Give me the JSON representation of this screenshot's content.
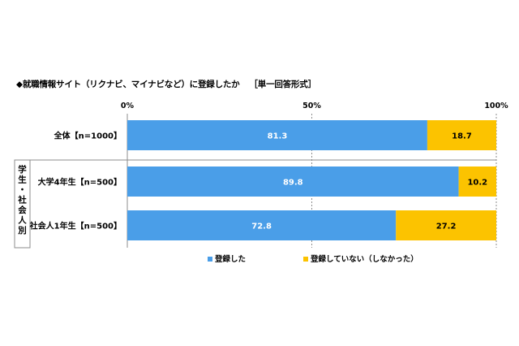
{
  "title": "◆就職情報サイト（リクナビ、マイナビなど）に登録したか",
  "subtitle": "［単一回答形式］",
  "group_label": [
    "学",
    "生",
    "・",
    "社",
    "会",
    "人",
    "別"
  ],
  "colors": {
    "registered": "#4a9ee8",
    "not_registered": "#fcc300",
    "grid": "#8c8c8c"
  },
  "chart_data": {
    "type": "bar",
    "orientation": "horizontal",
    "stacked": true,
    "percent": true,
    "categories": [
      "全体【n=1000】",
      "大学4年生【n=500】",
      "社会人1年生【n=500】"
    ],
    "series": [
      {
        "name": "登録した",
        "values": [
          81.3,
          89.8,
          72.8
        ]
      },
      {
        "name": "登録していない（しなかった）",
        "values": [
          18.7,
          10.2,
          27.2
        ]
      }
    ],
    "ticks": [
      "0%",
      "50%",
      "100%"
    ],
    "xlim": [
      0,
      100
    ],
    "legend": "bottom"
  }
}
